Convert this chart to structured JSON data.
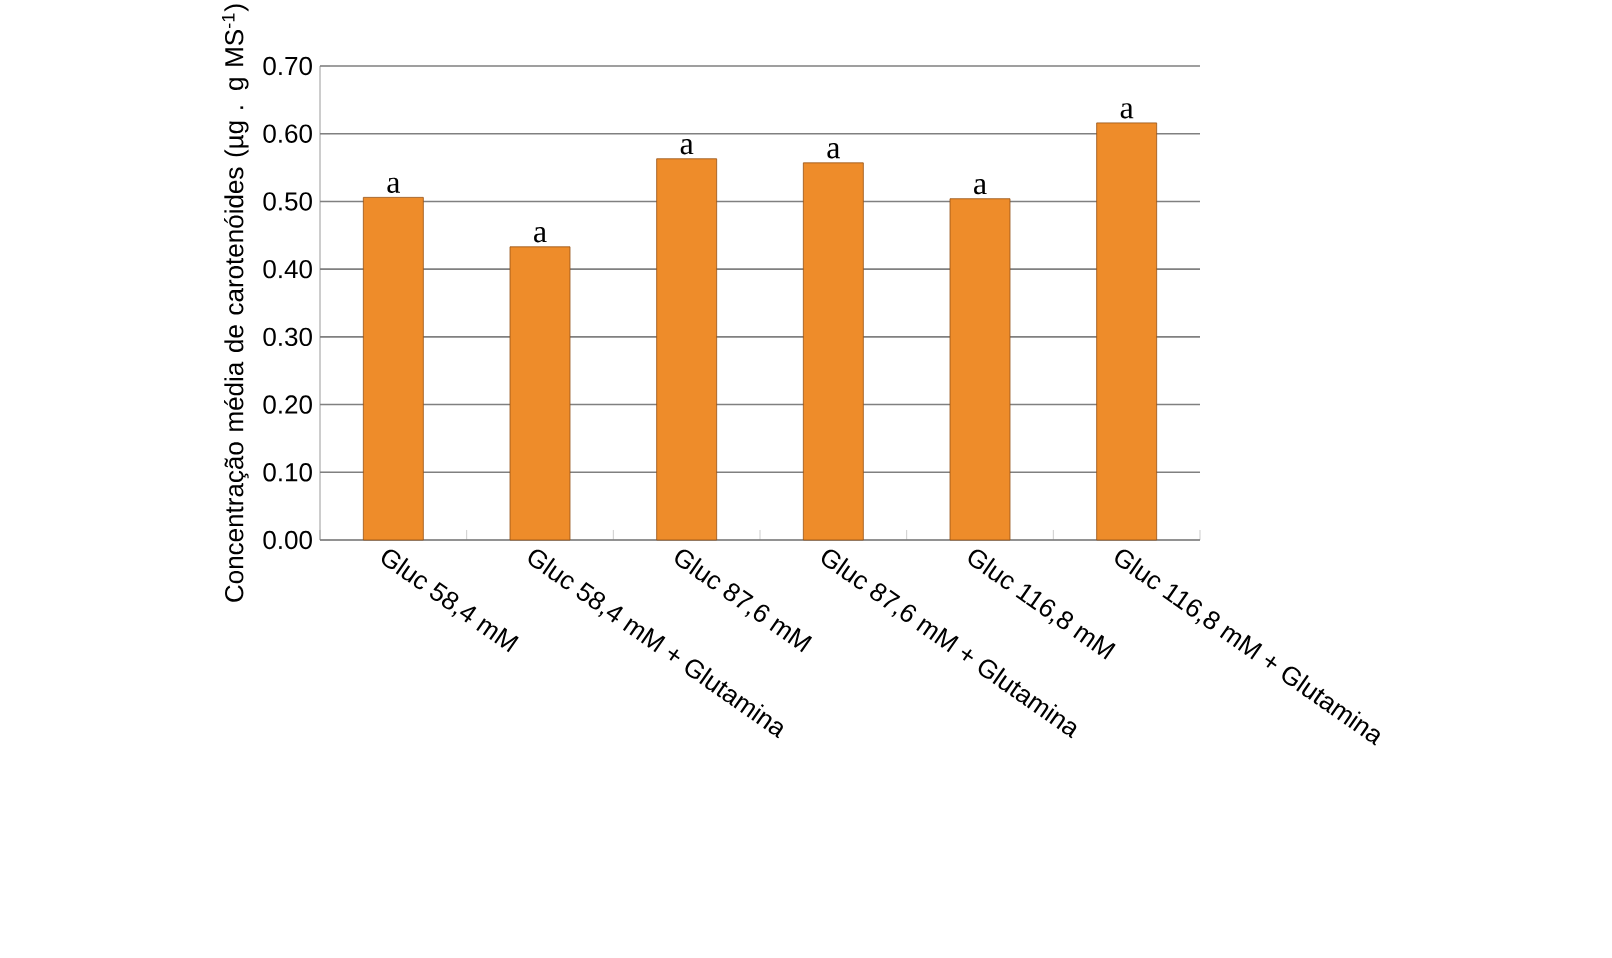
{
  "chart_data": {
    "type": "bar",
    "ylabel": "Concentração média de carotenóides (µg . g MS$^{-1}$)",
    "categories": [
      "Gluc 58,4 mM",
      "Gluc 58,4 mM + Glutamina",
      "Gluc 87,6 mM",
      "Gluc 87,6 mM + Glutamina",
      "Gluc 116,8 mM",
      "Gluc 116,8 mM + Glutamina"
    ],
    "values": [
      0.506,
      0.433,
      0.563,
      0.557,
      0.504,
      0.616
    ],
    "color": "#ee8c2a",
    "ylim": [
      0,
      0.7
    ],
    "yticks": [
      {
        "value": 0,
        "label": "0.00"
      },
      {
        "value": 0.1,
        "label": "0.10"
      },
      {
        "value": 0.2,
        "label": "0.20"
      },
      {
        "value": 0.3,
        "label": "0.30"
      },
      {
        "value": 0.4,
        "label": "0.40"
      },
      {
        "value": 0.5,
        "label": "0.50"
      },
      {
        "value": 0.6,
        "label": "0.60"
      },
      {
        "value": 0.7,
        "label": "0.70"
      }
    ],
    "grid": "y",
    "annotations": [
      {
        "text": "a",
        "x": "Gluc 58,4 mM",
        "y": 0.506
      },
      {
        "text": "a",
        "x": "Gluc 58,4 mM + Glutamina",
        "y": 0.433
      },
      {
        "text": "a",
        "x": "Gluc 87,6 mM",
        "y": 0.563
      },
      {
        "text": "a",
        "x": "Gluc 87,6 mM + Glutamina",
        "y": 0.557
      },
      {
        "text": "a",
        "x": "Gluc 116,8 mM",
        "y": 0.504
      },
      {
        "text": "a",
        "x": "Gluc 116,8 mM + Glutamina",
        "y": 0.616
      }
    ]
  }
}
